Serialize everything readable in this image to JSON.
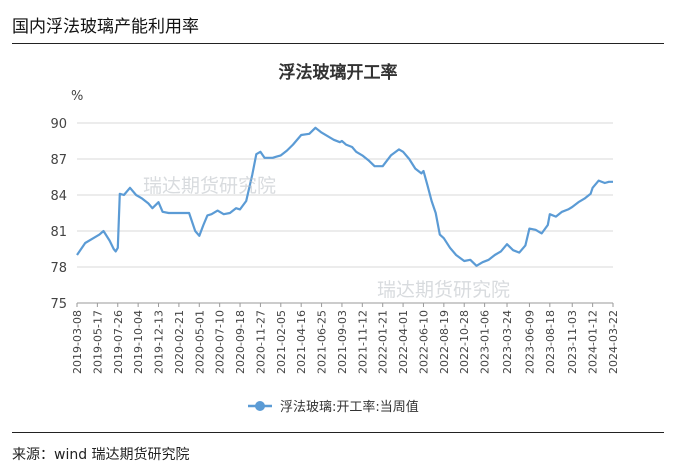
{
  "page": {
    "title": "国内浮法玻璃产能利用率",
    "source": "来源：wind    瑞达期货研究院"
  },
  "watermarks": [
    "瑞达期货研究院",
    "瑞达期货研究院"
  ],
  "chart_data": {
    "type": "line",
    "title": "浮法玻璃开工率",
    "yunit": "%",
    "ylim": [
      75,
      90
    ],
    "yticks": [
      75,
      78,
      81,
      84,
      87,
      90
    ],
    "grid": true,
    "legend_position": "bottom",
    "line_color": "#5b9bd5",
    "x_ticks": [
      "2019-03-08",
      "2019-05-17",
      "2019-07-26",
      "2019-10-04",
      "2019-12-13",
      "2020-02-21",
      "2020-05-01",
      "2020-07-10",
      "2020-09-18",
      "2020-11-27",
      "2021-02-05",
      "2021-04-16",
      "2021-06-25",
      "2021-09-03",
      "2021-11-12",
      "2022-01-21",
      "2022-04-01",
      "2022-06-10",
      "2022-08-19",
      "2022-10-28",
      "2023-01-06",
      "2023-03-24",
      "2023-06-09",
      "2023-08-18",
      "2023-11-03",
      "2024-01-12",
      "2024-03-22"
    ],
    "series": [
      {
        "name": "浮法玻璃:开工率:当周值",
        "x": [
          "2019-03-08",
          "2019-04-05",
          "2019-05-03",
          "2019-05-24",
          "2019-06-07",
          "2019-06-28",
          "2019-07-12",
          "2019-07-19",
          "2019-07-26",
          "2019-08-02",
          "2019-08-16",
          "2019-09-06",
          "2019-09-27",
          "2019-10-18",
          "2019-11-08",
          "2019-11-22",
          "2019-12-13",
          "2019-12-27",
          "2020-01-17",
          "2020-02-21",
          "2020-03-27",
          "2020-04-17",
          "2020-05-01",
          "2020-05-15",
          "2020-05-29",
          "2020-06-12",
          "2020-07-03",
          "2020-07-24",
          "2020-08-14",
          "2020-09-04",
          "2020-09-18",
          "2020-10-09",
          "2020-10-30",
          "2020-11-13",
          "2020-11-27",
          "2020-12-11",
          "2020-12-25",
          "2021-01-08",
          "2021-01-22",
          "2021-02-05",
          "2021-02-26",
          "2021-03-19",
          "2021-04-16",
          "2021-05-14",
          "2021-06-04",
          "2021-06-25",
          "2021-07-16",
          "2021-08-06",
          "2021-08-27",
          "2021-09-03",
          "2021-09-17",
          "2021-10-08",
          "2021-10-22",
          "2021-11-12",
          "2021-12-03",
          "2021-12-24",
          "2022-01-21",
          "2022-02-18",
          "2022-03-18",
          "2022-04-01",
          "2022-04-22",
          "2022-05-13",
          "2022-06-03",
          "2022-06-10",
          "2022-06-24",
          "2022-07-08",
          "2022-07-22",
          "2022-08-05",
          "2022-08-19",
          "2022-09-09",
          "2022-09-30",
          "2022-10-28",
          "2022-11-18",
          "2022-12-09",
          "2022-12-30",
          "2023-01-20",
          "2023-02-10",
          "2023-03-03",
          "2023-03-24",
          "2023-04-14",
          "2023-05-05",
          "2023-05-26",
          "2023-06-09",
          "2023-06-30",
          "2023-07-21",
          "2023-08-11",
          "2023-08-18",
          "2023-09-08",
          "2023-09-29",
          "2023-10-20",
          "2023-11-03",
          "2023-11-24",
          "2023-12-15",
          "2024-01-05",
          "2024-01-12",
          "2024-02-02",
          "2024-02-23",
          "2024-03-08",
          "2024-03-15",
          "2024-03-22"
        ],
        "values": [
          79.0,
          80.0,
          80.4,
          80.7,
          81.0,
          80.2,
          79.5,
          79.3,
          79.6,
          84.1,
          84.0,
          84.6,
          84.0,
          83.7,
          83.3,
          82.9,
          83.4,
          82.6,
          82.5,
          82.5,
          82.5,
          81.0,
          80.6,
          81.5,
          82.3,
          82.4,
          82.7,
          82.4,
          82.5,
          82.9,
          82.8,
          83.5,
          85.7,
          87.4,
          87.6,
          87.1,
          87.1,
          87.1,
          87.2,
          87.3,
          87.7,
          88.2,
          89.0,
          89.1,
          89.6,
          89.2,
          88.9,
          88.6,
          88.4,
          88.5,
          88.2,
          88.0,
          87.6,
          87.3,
          86.9,
          86.4,
          86.4,
          87.3,
          87.8,
          87.6,
          87.0,
          86.2,
          85.8,
          86.0,
          84.8,
          83.5,
          82.5,
          80.7,
          80.4,
          79.6,
          79.0,
          78.5,
          78.6,
          78.1,
          78.4,
          78.6,
          79.0,
          79.3,
          79.9,
          79.4,
          79.2,
          79.8,
          81.2,
          81.1,
          80.8,
          81.5,
          82.4,
          82.2,
          82.6,
          82.8,
          83.0,
          83.4,
          83.7,
          84.1,
          84.6,
          85.2,
          85.0,
          85.1,
          85.1,
          85.1
        ]
      }
    ]
  }
}
